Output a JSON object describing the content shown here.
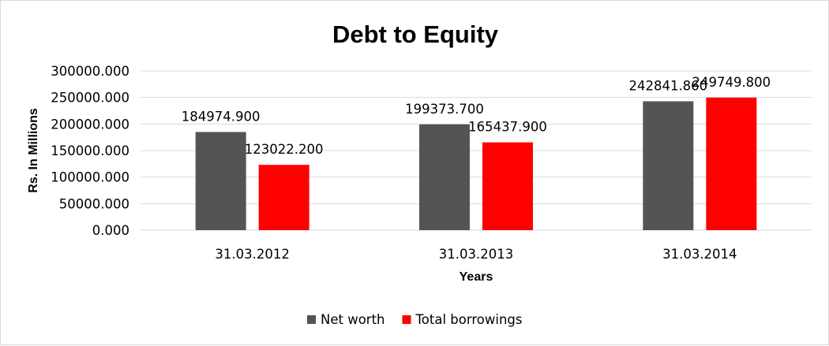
{
  "chart_data": {
    "type": "bar",
    "title": "Debt to Equity",
    "xlabel": "Years",
    "ylabel": "Rs. In Millions",
    "categories": [
      "31.03.2012",
      "31.03.2013",
      "31.03.2014"
    ],
    "ylim": [
      0,
      300000
    ],
    "yticks": [
      "0.000",
      "50000.000",
      "100000.000",
      "150000.000",
      "200000.000",
      "250000.000",
      "300000.000"
    ],
    "grid": true,
    "legend_position": "bottom",
    "series": [
      {
        "name": "Net worth",
        "color": "#545454",
        "values": [
          184974.9,
          199373.7,
          242841.86
        ],
        "labels": [
          "184974.900",
          "199373.700",
          "242841.860"
        ]
      },
      {
        "name": "Total borrowings",
        "color": "#ff0000",
        "values": [
          123022.2,
          165437.9,
          249749.8
        ],
        "labels": [
          "123022.200",
          "165437.900",
          "249749.800"
        ]
      }
    ]
  }
}
